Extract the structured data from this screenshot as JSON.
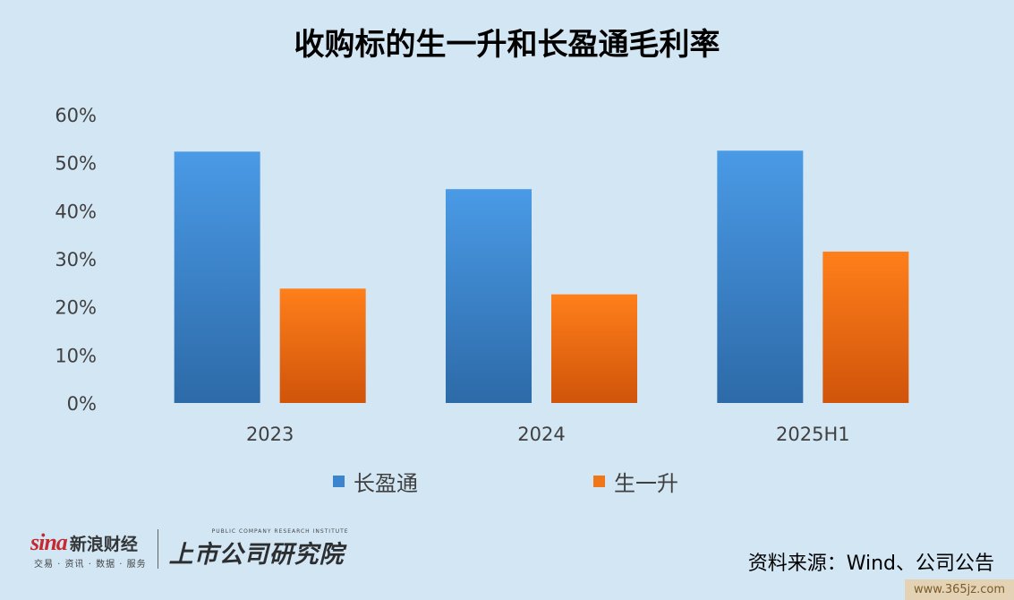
{
  "title": "收购标的生一升和长盈通毛利率",
  "chart_data": {
    "type": "bar",
    "categories": [
      "2023",
      "2024",
      "2025H1"
    ],
    "series": [
      {
        "name": "长盈通",
        "values": [
          52.3,
          44.5,
          52.5
        ],
        "color": "#3b85cf"
      },
      {
        "name": "生一升",
        "values": [
          23.8,
          22.6,
          31.5
        ],
        "color": "#f0761a"
      }
    ],
    "yticks": [
      "0%",
      "10%",
      "20%",
      "30%",
      "40%",
      "50%",
      "60%"
    ],
    "ylim": [
      0,
      60
    ],
    "grid": false,
    "legend": "bottom"
  },
  "footer": {
    "sina_mark": "sina",
    "sina_name": "新浪财经",
    "sina_sub": "交易 · 资讯 · 数据 · 服务",
    "inst_en": "PUBLIC COMPANY RESEARCH INSTITUTE",
    "inst_cn": "上市公司研究院",
    "source": "资料来源：Wind、公司公告"
  },
  "site_watermark": "www.365jz.com"
}
